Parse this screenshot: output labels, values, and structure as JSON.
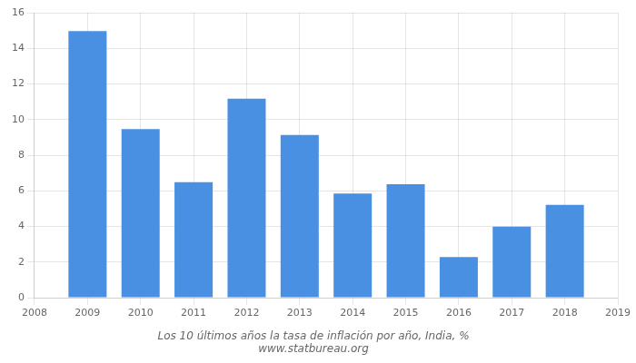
{
  "chart_data": {
    "type": "bar",
    "title": "Los 10 últimos años la tasa de inflación por año, India, %",
    "subtitle": "www.statbureau.org",
    "x": [
      2009,
      2010,
      2011,
      2012,
      2013,
      2014,
      2015,
      2016,
      2017,
      2018
    ],
    "values": [
      14.97,
      9.47,
      6.49,
      11.17,
      9.13,
      5.85,
      6.37,
      2.28,
      3.99,
      5.21
    ],
    "color": "#4a90e2",
    "xlim": [
      2008,
      2019
    ],
    "xticks": [
      2008,
      2009,
      2010,
      2011,
      2012,
      2013,
      2014,
      2015,
      2016,
      2017,
      2018,
      2019
    ],
    "ylim": [
      0,
      16
    ],
    "yticks": [
      0,
      2,
      4,
      6,
      8,
      10,
      12,
      14,
      16
    ],
    "grid": true
  }
}
